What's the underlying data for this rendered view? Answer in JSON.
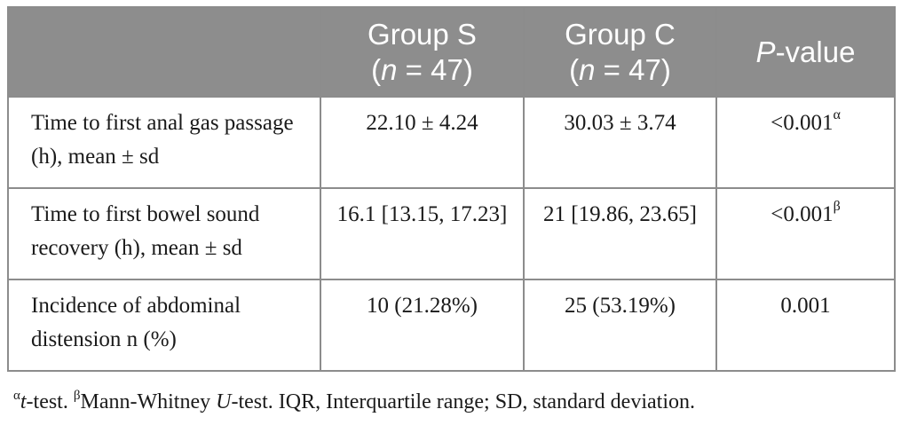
{
  "table": {
    "headers": {
      "col0": "",
      "group_s": {
        "line1": "Group S",
        "n_var": "n",
        "n_rest": " = 47)"
      },
      "group_c": {
        "line1": "Group C",
        "n_var": "n",
        "n_rest": " = 47)"
      },
      "pvalue": {
        "p_italic": "P",
        "rest": "-value"
      }
    },
    "rows": [
      {
        "label": "Time to first anal gas passage (h), mean ± sd",
        "group_s": "22.10 ± 4.24",
        "group_c": "30.03 ± 3.74",
        "pvalue": "<0.001",
        "pvalue_mark": "α"
      },
      {
        "label": "Time to first bowel sound recovery (h), mean ± sd",
        "group_s": "16.1 [13.15, 17.23]",
        "group_c": "21 [19.86, 23.65]",
        "pvalue": "<0.001",
        "pvalue_mark": "β"
      },
      {
        "label": "Incidence of abdominal distension n (%)",
        "group_s": "10 (21.28%)",
        "group_c": "25 (53.19%)",
        "pvalue": "0.001",
        "pvalue_mark": ""
      }
    ]
  },
  "footnote": {
    "mark_a": "α",
    "test_a_italic": "t",
    "test_a_rest": "-test. ",
    "mark_b": "β",
    "test_b_pre": "Mann-Whitney ",
    "test_b_italic": "U",
    "test_b_rest": "-test. IQR, Interquartile range; SD, standard deviation."
  }
}
